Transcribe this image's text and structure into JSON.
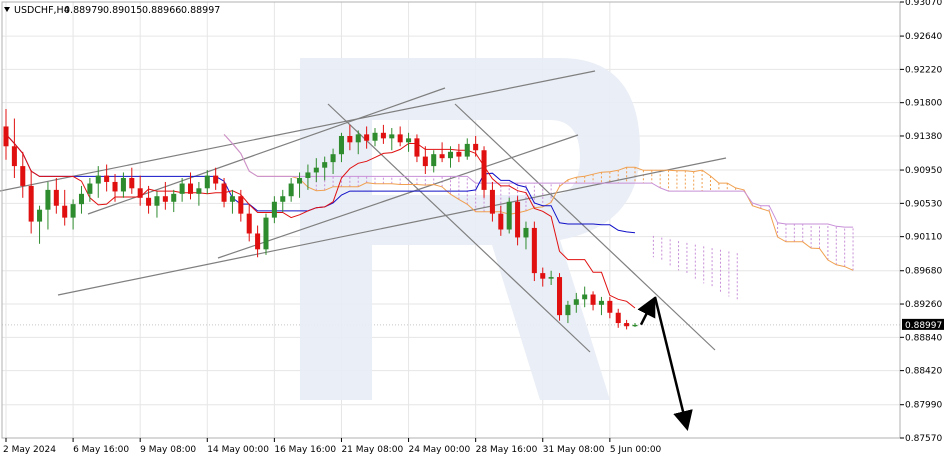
{
  "header": {
    "symbol": "USDCHF,H4",
    "ohlc": [
      "0.88979",
      "0.89015",
      "0.88966",
      "0.88997"
    ]
  },
  "colors": {
    "bull": "#2e8b2e",
    "bear": "#e01010",
    "tenkan": "#e01010",
    "kijun": "#1010c8",
    "kumo_upper": "#f0a050",
    "kumo_lower": "#c890d8",
    "trendline": "#7f7f7f",
    "arrow": "#000000",
    "grid": "#e6e6e6",
    "watermark": "#e8ecf5"
  },
  "price_tag": "0.88997",
  "chart_data": {
    "type": "candlestick",
    "title": "",
    "symbol": "USDCHF",
    "timeframe": "H4",
    "ylim": [
      0.8757,
      0.9307
    ],
    "y_ticks": [
      "0.93070",
      "0.92640",
      "0.92220",
      "0.91800",
      "0.91380",
      "0.90950",
      "0.90530",
      "0.90110",
      "0.89680",
      "0.89260",
      "0.88840",
      "0.88420",
      "0.87990",
      "0.87570"
    ],
    "x_ticks": [
      "2 May 2024",
      "6 May 16:00",
      "9 May 08:00",
      "14 May 00:00",
      "16 May 16:00",
      "21 May 08:00",
      "24 May 00:00",
      "28 May 16:00",
      "31 May 08:00",
      "5 Jun 00:00"
    ],
    "last_price": 0.88997,
    "candles": [
      [
        0.915,
        0.9172,
        0.9108,
        0.9125
      ],
      [
        0.9125,
        0.916,
        0.9085,
        0.91
      ],
      [
        0.91,
        0.9118,
        0.906,
        0.9075
      ],
      [
        0.9075,
        0.9095,
        0.9015,
        0.903
      ],
      [
        0.903,
        0.905,
        0.9002,
        0.9045
      ],
      [
        0.9045,
        0.908,
        0.902,
        0.907
      ],
      [
        0.907,
        0.9085,
        0.904,
        0.905
      ],
      [
        0.905,
        0.907,
        0.9025,
        0.9035
      ],
      [
        0.9035,
        0.9058,
        0.902,
        0.9052
      ],
      [
        0.9052,
        0.9075,
        0.904,
        0.9065
      ],
      [
        0.9065,
        0.9085,
        0.9055,
        0.9078
      ],
      [
        0.9078,
        0.91,
        0.906,
        0.9088
      ],
      [
        0.9088,
        0.9102,
        0.9068,
        0.908
      ],
      [
        0.908,
        0.909,
        0.9055,
        0.9068
      ],
      [
        0.9068,
        0.9092,
        0.906,
        0.9085
      ],
      [
        0.9085,
        0.9098,
        0.9065,
        0.9072
      ],
      [
        0.9072,
        0.9088,
        0.905,
        0.906
      ],
      [
        0.906,
        0.9075,
        0.904,
        0.905
      ],
      [
        0.905,
        0.9068,
        0.9035,
        0.9062
      ],
      [
        0.9062,
        0.908,
        0.9045,
        0.9055
      ],
      [
        0.9055,
        0.907,
        0.9042,
        0.9065
      ],
      [
        0.9065,
        0.9085,
        0.9055,
        0.9078
      ],
      [
        0.9078,
        0.9092,
        0.9058,
        0.9065
      ],
      [
        0.9065,
        0.908,
        0.905,
        0.9072
      ],
      [
        0.9072,
        0.9095,
        0.9065,
        0.9088
      ],
      [
        0.9088,
        0.9098,
        0.907,
        0.9078
      ],
      [
        0.9078,
        0.9085,
        0.9048,
        0.9055
      ],
      [
        0.9055,
        0.907,
        0.904,
        0.9062
      ],
      [
        0.9062,
        0.907,
        0.903,
        0.904
      ],
      [
        0.904,
        0.9052,
        0.9005,
        0.9015
      ],
      [
        0.9015,
        0.9025,
        0.8985,
        0.8995
      ],
      [
        0.8995,
        0.904,
        0.8988,
        0.9035
      ],
      [
        0.9035,
        0.9062,
        0.9028,
        0.9055
      ],
      [
        0.9055,
        0.907,
        0.9042,
        0.9062
      ],
      [
        0.9062,
        0.9085,
        0.9055,
        0.9078
      ],
      [
        0.9078,
        0.9092,
        0.906,
        0.9085
      ],
      [
        0.9085,
        0.9102,
        0.907,
        0.9092
      ],
      [
        0.9092,
        0.911,
        0.908,
        0.9098
      ],
      [
        0.9098,
        0.9112,
        0.9082,
        0.9105
      ],
      [
        0.9105,
        0.9122,
        0.909,
        0.9115
      ],
      [
        0.9115,
        0.9142,
        0.9105,
        0.9138
      ],
      [
        0.9138,
        0.9152,
        0.912,
        0.913
      ],
      [
        0.913,
        0.9145,
        0.9115,
        0.914
      ],
      [
        0.914,
        0.915,
        0.9122,
        0.9132
      ],
      [
        0.9132,
        0.9148,
        0.9125,
        0.9142
      ],
      [
        0.9142,
        0.9152,
        0.9128,
        0.9135
      ],
      [
        0.9135,
        0.9148,
        0.912,
        0.914
      ],
      [
        0.914,
        0.915,
        0.9125,
        0.913
      ],
      [
        0.913,
        0.9142,
        0.9118,
        0.9135
      ],
      [
        0.9135,
        0.914,
        0.9105,
        0.9112
      ],
      [
        0.9112,
        0.9125,
        0.909,
        0.91
      ],
      [
        0.91,
        0.912,
        0.9092,
        0.9115
      ],
      [
        0.9115,
        0.913,
        0.9105,
        0.911
      ],
      [
        0.911,
        0.9125,
        0.9098,
        0.9118
      ],
      [
        0.9118,
        0.9128,
        0.9105,
        0.9112
      ],
      [
        0.9112,
        0.9135,
        0.9108,
        0.9128
      ],
      [
        0.9128,
        0.9138,
        0.9112,
        0.912
      ],
      [
        0.912,
        0.9125,
        0.906,
        0.907
      ],
      [
        0.907,
        0.908,
        0.903,
        0.904
      ],
      [
        0.904,
        0.905,
        0.9012,
        0.902
      ],
      [
        0.902,
        0.906,
        0.9015,
        0.9055
      ],
      [
        0.9055,
        0.9062,
        0.9,
        0.901
      ],
      [
        0.901,
        0.903,
        0.8995,
        0.9022
      ],
      [
        0.9022,
        0.903,
        0.8955,
        0.8965
      ],
      [
        0.8965,
        0.8972,
        0.8948,
        0.8958
      ],
      [
        0.8958,
        0.8968,
        0.895,
        0.896
      ],
      [
        0.896,
        0.8965,
        0.8905,
        0.8912
      ],
      [
        0.8912,
        0.893,
        0.8902,
        0.8925
      ],
      [
        0.8925,
        0.894,
        0.8915,
        0.8932
      ],
      [
        0.8932,
        0.8948,
        0.8922,
        0.8938
      ],
      [
        0.8938,
        0.8942,
        0.8918,
        0.8925
      ],
      [
        0.8925,
        0.8935,
        0.8912,
        0.893
      ],
      [
        0.893,
        0.8935,
        0.8908,
        0.8915
      ],
      [
        0.8915,
        0.892,
        0.8896,
        0.8902
      ],
      [
        0.8902,
        0.8906,
        0.8894,
        0.8898
      ],
      [
        0.8898,
        0.8902,
        0.8897,
        0.88997
      ]
    ],
    "annotations": {
      "projected_path": [
        [
          0.89,
          0.8935
        ],
        [
          0.8935,
          0.8765
        ]
      ]
    }
  }
}
